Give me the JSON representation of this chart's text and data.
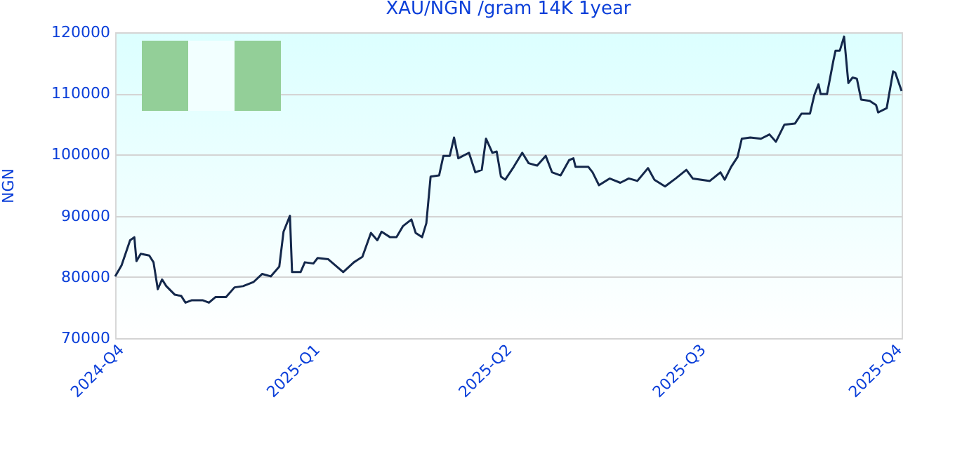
{
  "chart_data": {
    "type": "line",
    "title": "XAU/NGN /gram 14K 1year",
    "ylabel": "NGN",
    "x": [
      "2024-10-01",
      "2024-10-04",
      "2024-10-08",
      "2024-10-10",
      "2024-10-11",
      "2024-10-13",
      "2024-10-17",
      "2024-10-19",
      "2024-10-21",
      "2024-10-23",
      "2024-10-25",
      "2024-10-29",
      "2024-11-01",
      "2024-11-03",
      "2024-11-06",
      "2024-11-11",
      "2024-11-14",
      "2024-11-17",
      "2024-11-22",
      "2024-11-26",
      "2024-11-30",
      "2024-12-05",
      "2024-12-09",
      "2024-12-13",
      "2024-12-17",
      "2024-12-19",
      "2024-12-22",
      "2024-12-23",
      "2024-12-27",
      "2024-12-29",
      "2025-01-02",
      "2025-01-04",
      "2025-01-09",
      "2025-01-16",
      "2025-01-21",
      "2025-01-25",
      "2025-01-29",
      "2025-02-01",
      "2025-02-03",
      "2025-02-07",
      "2025-02-10",
      "2025-02-13",
      "2025-02-17",
      "2025-02-19",
      "2025-02-22",
      "2025-02-24",
      "2025-02-26",
      "2025-03-02",
      "2025-03-04",
      "2025-03-07",
      "2025-03-09",
      "2025-03-11",
      "2025-03-16",
      "2025-03-19",
      "2025-03-22",
      "2025-03-24",
      "2025-03-27",
      "2025-03-29",
      "2025-03-31",
      "2025-04-02",
      "2025-04-06",
      "2025-04-10",
      "2025-04-13",
      "2025-04-17",
      "2025-04-21",
      "2025-04-24",
      "2025-04-28",
      "2025-05-02",
      "2025-05-04",
      "2025-05-05",
      "2025-05-11",
      "2025-05-13",
      "2025-05-16",
      "2025-05-21",
      "2025-05-26",
      "2025-05-30",
      "2025-06-03",
      "2025-06-08",
      "2025-06-11",
      "2025-06-16",
      "2025-06-21",
      "2025-06-26",
      "2025-06-29",
      "2025-07-07",
      "2025-07-12",
      "2025-07-14",
      "2025-07-17",
      "2025-07-20",
      "2025-07-22",
      "2025-07-26",
      "2025-07-31",
      "2025-08-04",
      "2025-08-07",
      "2025-08-11",
      "2025-08-16",
      "2025-08-19",
      "2025-08-23",
      "2025-08-25",
      "2025-08-27",
      "2025-08-28",
      "2025-08-31",
      "2025-09-03",
      "2025-09-04",
      "2025-09-06",
      "2025-09-08",
      "2025-09-10",
      "2025-09-12",
      "2025-09-14",
      "2025-09-16",
      "2025-09-20",
      "2025-09-23",
      "2025-09-24",
      "2025-09-28",
      "2025-10-01",
      "2025-10-02",
      "2025-10-05"
    ],
    "series": [
      {
        "color": "#14284b",
        "values": [
          80100,
          81900,
          86000,
          86500,
          82600,
          83800,
          83500,
          82400,
          78000,
          79600,
          78500,
          77100,
          76900,
          75800,
          76200,
          76200,
          75800,
          76700,
          76700,
          78300,
          78500,
          79200,
          80500,
          80100,
          81700,
          87400,
          90000,
          80800,
          80800,
          82400,
          82200,
          83100,
          82900,
          80800,
          82400,
          83300,
          87200,
          86000,
          87400,
          86500,
          86500,
          88300,
          89400,
          87200,
          86500,
          88800,
          96400,
          96600,
          99800,
          99800,
          102800,
          99400,
          100300,
          97100,
          97500,
          102600,
          100300,
          100500,
          96400,
          95900,
          98000,
          100300,
          98600,
          98200,
          99800,
          97100,
          96600,
          99100,
          99400,
          98000,
          98000,
          97100,
          95000,
          96100,
          95400,
          96100,
          95700,
          97800,
          95900,
          94800,
          96100,
          97500,
          96100,
          95700,
          97100,
          95900,
          98000,
          99600,
          102600,
          102800,
          102600,
          103300,
          102100,
          104900,
          105100,
          106700,
          106700,
          109700,
          111500,
          109900,
          109900,
          115400,
          117000,
          117000,
          119300,
          111700,
          112600,
          112400,
          109000,
          108800,
          108100,
          106900,
          107600,
          113600,
          113400,
          110400
        ]
      }
    ],
    "xlim": [
      "2024-10-01",
      "2025-10-05"
    ],
    "xticks": [
      {
        "value": "2024-10-01",
        "label": "2024-Q4"
      },
      {
        "value": "2025-01-01",
        "label": "2025-Q1"
      },
      {
        "value": "2025-04-01",
        "label": "2025-Q2"
      },
      {
        "value": "2025-07-01",
        "label": "2025-Q3"
      },
      {
        "value": "2025-10-01",
        "label": "2025-Q4"
      }
    ],
    "ylim": [
      70000,
      120000
    ],
    "yticks": [
      70000,
      80000,
      90000,
      100000,
      110000,
      120000
    ],
    "grid": "y",
    "marker": "none",
    "line_style": "solid"
  }
}
